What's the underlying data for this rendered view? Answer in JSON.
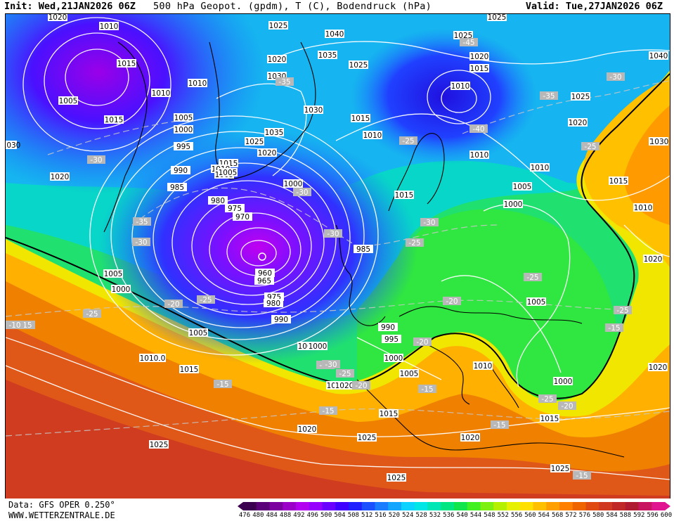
{
  "header": {
    "init": "Init: Wed,21JAN2026 06Z",
    "title": "500 hPa Geopot. (gpdm), T (C), Bodendruck (hPa)",
    "valid": "Valid: Tue,27JAN2026 06Z"
  },
  "footer": {
    "data_source": "Data: GFS OPER 0.250°",
    "site": "WWW.WETTERZENTRALE.DE"
  },
  "legend": {
    "ticks": [
      "476",
      "480",
      "484",
      "488",
      "492",
      "496",
      "500",
      "504",
      "508",
      "512",
      "516",
      "520",
      "524",
      "528",
      "532",
      "536",
      "540",
      "544",
      "548",
      "552",
      "556",
      "560",
      "564",
      "568",
      "572",
      "576",
      "580",
      "584",
      "588",
      "592",
      "596",
      "600"
    ],
    "colors": [
      "#3c0050",
      "#5a0078",
      "#7a00a0",
      "#9a00c8",
      "#b400f0",
      "#9600ff",
      "#6a00ff",
      "#4000ff",
      "#2020ff",
      "#1a50ff",
      "#1a7cff",
      "#12a6ff",
      "#0cd2ff",
      "#00e6e6",
      "#00e6b4",
      "#00e680",
      "#10e64c",
      "#40f020",
      "#7cf010",
      "#b4f000",
      "#e6f000",
      "#ffe000",
      "#ffc000",
      "#ffa000",
      "#ff8000",
      "#f06400",
      "#e04a10",
      "#d03820",
      "#c02828",
      "#b01a30",
      "#c81460",
      "#e01490"
    ]
  },
  "map": {
    "pressure_labels": [
      "1010",
      "1025",
      "1040",
      "1025",
      "1020",
      "1005",
      "1010",
      "1020",
      "1035",
      "1030",
      "1025",
      "1015",
      "1010",
      "1010",
      "1010",
      "1005",
      "1000",
      "995",
      "1035",
      "1025",
      "1020",
      "1015",
      "1010",
      "1005",
      "990",
      "985",
      "980",
      "975",
      "970",
      "960",
      "965",
      "975",
      "980",
      "990",
      "985",
      "1000",
      "1030",
      "1015",
      "1010",
      "1040",
      "1020",
      "1035",
      "1025",
      "1030",
      "1015",
      "1010",
      "1005",
      "1000",
      "1015",
      "1020",
      "1010",
      "1005",
      "1000",
      "1005",
      "1010",
      "1015",
      "1020",
      "1025",
      "1025",
      "1025",
      "1015",
      "1020",
      "1000",
      "1010",
      "1005",
      "1000",
      "995",
      "990",
      "1015",
      "1025",
      "1020",
      "1010",
      "1005",
      "1000",
      "1015",
      "1030",
      "1020",
      "1010",
      "1020",
      "1005",
      "1000",
      "1015",
      "1025",
      "1020"
    ],
    "temperature_labels": [
      "-45",
      "-35",
      "-30",
      "-35",
      "-40",
      "-30",
      "-25",
      "-35",
      "-30",
      "-30",
      "-30",
      "-30",
      "-25",
      "-25",
      "-20",
      "-25",
      "-25",
      "-20",
      "-25",
      "-30",
      "-25",
      "-20",
      "-15",
      "-15",
      "-15",
      "-15",
      "-20",
      "-15",
      "-15",
      "-20",
      "-25",
      "-15",
      "-25",
      "-30",
      "-10"
    ]
  }
}
